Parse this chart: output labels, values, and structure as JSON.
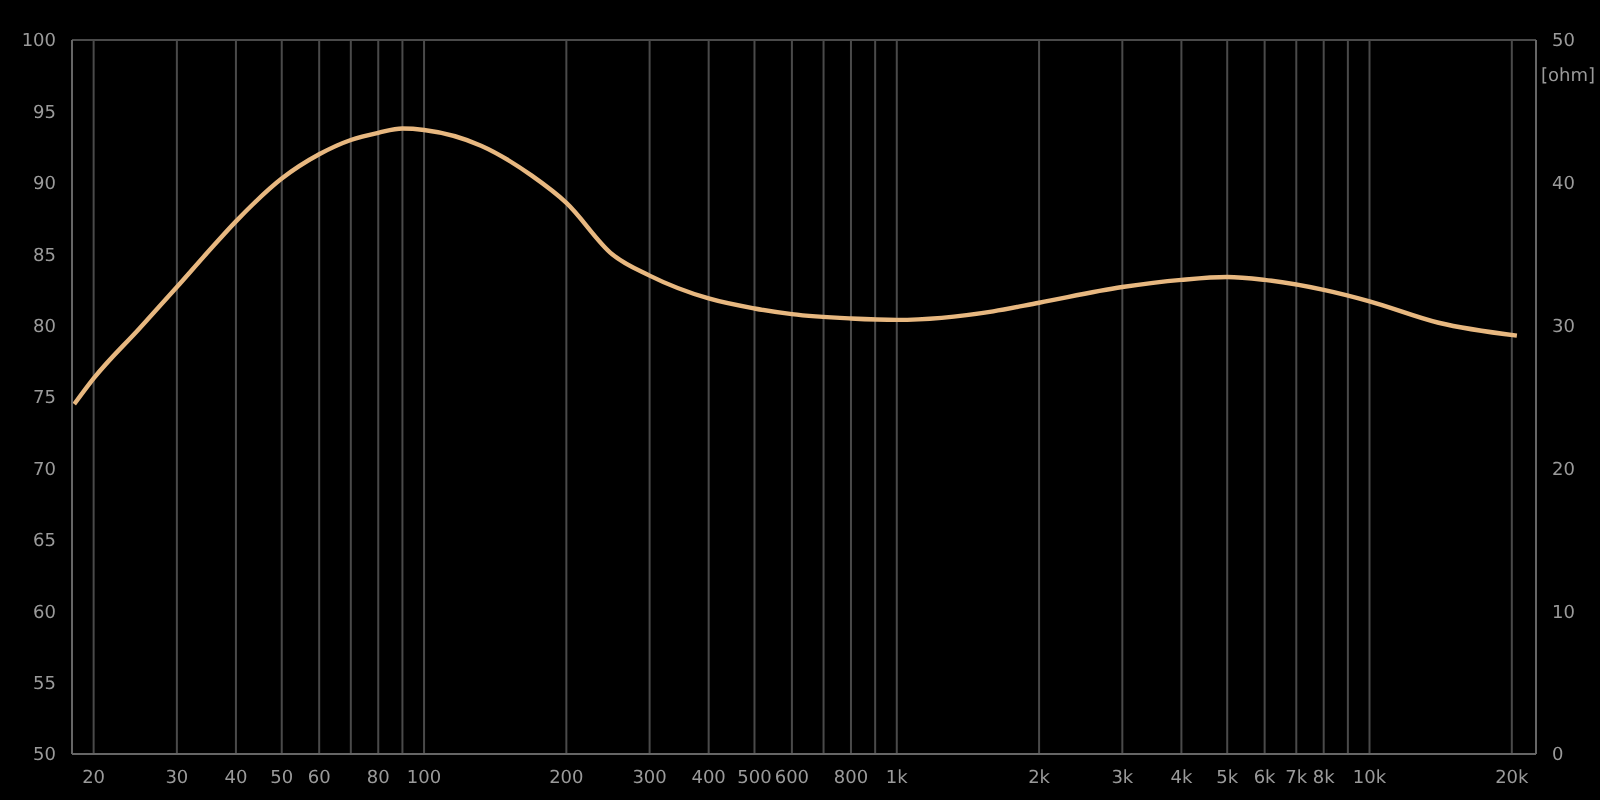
{
  "chart_data": {
    "type": "line",
    "log": "x",
    "grid": true,
    "legend": false,
    "marker": "none",
    "line_style": "solid",
    "xlim": [
      18,
      22500
    ],
    "ylim": [
      50,
      100
    ],
    "y2lim": [
      0,
      50
    ],
    "y2label": "[ohm]",
    "xticks": [
      20,
      30,
      40,
      50,
      60,
      {
        "value": 70,
        "label": null
      },
      80,
      {
        "value": 90,
        "label": null
      },
      100,
      200,
      300,
      400,
      500,
      600,
      {
        "value": 700,
        "label": null
      },
      800,
      {
        "value": 900,
        "label": null
      },
      {
        "value": 1000,
        "label": "1k"
      },
      {
        "value": 2000,
        "label": "2k"
      },
      {
        "value": 3000,
        "label": "3k"
      },
      {
        "value": 4000,
        "label": "4k"
      },
      {
        "value": 5000,
        "label": "5k"
      },
      {
        "value": 6000,
        "label": "6k"
      },
      {
        "value": 7000,
        "label": "7k"
      },
      {
        "value": 8000,
        "label": "8k"
      },
      {
        "value": 9000,
        "label": null
      },
      {
        "value": 10000,
        "label": "10k"
      },
      {
        "value": 20000,
        "label": "20k"
      }
    ],
    "yticks": [
      50,
      55,
      60,
      65,
      70,
      75,
      80,
      85,
      90,
      95,
      100
    ],
    "y2ticks": [
      0,
      10,
      20,
      30,
      40,
      50
    ],
    "x": [
      18.2,
      20,
      25,
      30,
      35,
      40,
      50,
      60,
      70,
      80,
      90,
      100,
      132,
      169,
      200,
      250,
      300,
      400,
      500,
      600,
      800,
      1000,
      1600,
      2000,
      3000,
      4000,
      5000,
      6000,
      8000,
      10000,
      14000,
      20500
    ],
    "series": [
      {
        "color": "#e8b880",
        "values": [
          74.5,
          76.3,
          79.8,
          82.7,
          85.2,
          87.3,
          90.3,
          92.0,
          93.0,
          93.5,
          93.8,
          93.7,
          92.6,
          90.5,
          88.6,
          85.0,
          83.5,
          81.9,
          81.2,
          80.8,
          80.5,
          80.4,
          81.0,
          81.6,
          82.7,
          83.2,
          83.4,
          83.2,
          82.5,
          81.7,
          80.2,
          79.3
        ]
      }
    ]
  }
}
